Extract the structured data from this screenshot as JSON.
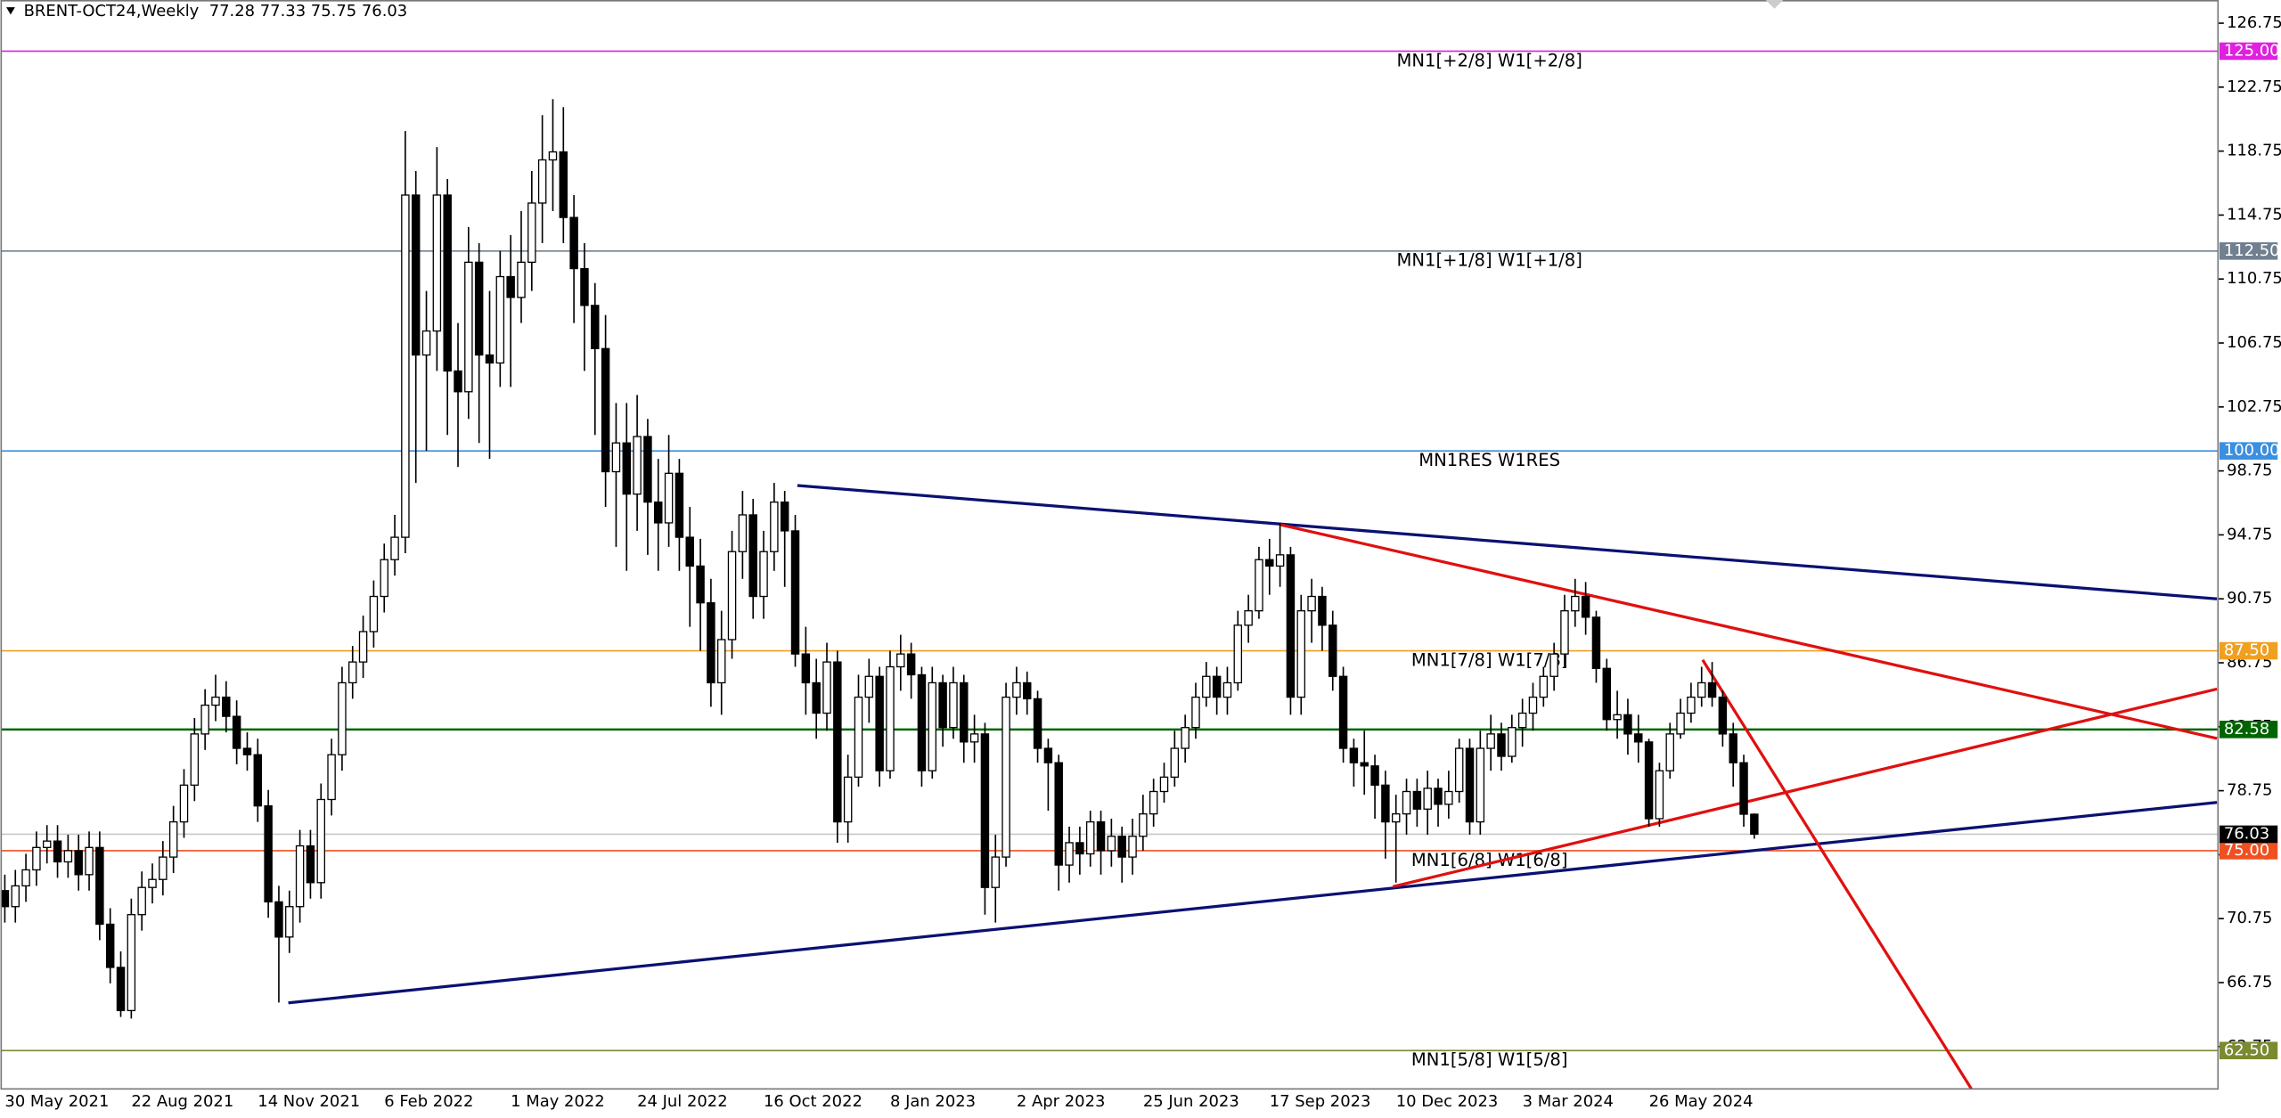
{
  "chart_data": {
    "type": "candlestick",
    "title": "BRENT-OCT24,Weekly  77.28 77.33 75.75 76.03",
    "up_color": "#ffffff",
    "down_color": "#000000",
    "wick_color": "#000000",
    "grid": false,
    "categories": [
      "30 May 2021",
      null,
      null,
      null,
      null,
      null,
      null,
      null,
      null,
      null,
      null,
      null,
      "22 Aug 2021",
      null,
      null,
      null,
      null,
      null,
      null,
      null,
      null,
      null,
      null,
      null,
      "14 Nov 2021",
      null,
      null,
      null,
      null,
      null,
      null,
      null,
      null,
      null,
      null,
      null,
      "6 Feb 2022",
      null,
      null,
      null,
      null,
      null,
      null,
      null,
      null,
      null,
      null,
      null,
      "1 May 2022",
      null,
      null,
      null,
      null,
      null,
      null,
      null,
      null,
      null,
      null,
      null,
      "24 Jul 2022",
      null,
      null,
      null,
      null,
      null,
      null,
      null,
      null,
      null,
      null,
      null,
      "16 Oct 2022",
      null,
      null,
      null,
      null,
      null,
      null,
      null,
      null,
      null,
      null,
      null,
      "8 Jan 2023",
      null,
      null,
      null,
      null,
      null,
      null,
      null,
      null,
      null,
      null,
      null,
      "2 Apr 2023",
      null,
      null,
      null,
      null,
      null,
      null,
      null,
      null,
      null,
      null,
      null,
      "25 Jun 2023",
      null,
      null,
      null,
      null,
      null,
      null,
      null,
      null,
      null,
      null,
      null,
      "17 Sep 2023",
      null,
      null,
      null,
      null,
      null,
      null,
      null,
      null,
      null,
      null,
      null,
      "10 Dec 2023",
      null,
      null,
      null,
      null,
      null,
      null,
      null,
      null,
      null,
      null,
      null,
      "3 Mar 2024",
      null,
      null,
      null,
      null,
      null,
      null,
      null,
      null,
      null,
      null,
      null,
      "26 May 2024",
      null,
      null,
      null,
      null,
      null,
      null,
      null,
      null,
      null,
      null
    ],
    "open": [
      72.5,
      71.5,
      72.8,
      73.8,
      75.2,
      75.6,
      74.3,
      75.0,
      73.5,
      75.2,
      70.4,
      67.7,
      65.0,
      71.0,
      72.7,
      73.2,
      74.6,
      76.8,
      79.1,
      82.3,
      84.1,
      84.6,
      83.4,
      81.4,
      81.0,
      77.8,
      71.8,
      69.6,
      71.5,
      75.3,
      73.0,
      78.2,
      81.0,
      85.5,
      86.8,
      88.7,
      90.9,
      93.2,
      94.6,
      116.0,
      106.0,
      107.5,
      116.0,
      105.0,
      103.7,
      111.8,
      106.0,
      105.5,
      110.9,
      109.6,
      111.8,
      115.5,
      118.2,
      118.7,
      114.6,
      111.4,
      109.1,
      106.4,
      98.7,
      100.5,
      97.3,
      100.9,
      96.8,
      95.5,
      98.6,
      94.6,
      92.8,
      90.5,
      85.5,
      88.2,
      93.7,
      96.0,
      90.9,
      93.7,
      96.8,
      95.0,
      87.3,
      85.5,
      83.6,
      86.8,
      76.8,
      79.6,
      84.6,
      85.9,
      80.0,
      86.5,
      87.3,
      86.0,
      80.0,
      85.5,
      82.7,
      85.5,
      81.8,
      82.3,
      72.7,
      74.6,
      84.6,
      85.5,
      84.5,
      81.4,
      80.5,
      74.1,
      75.5,
      74.8,
      76.8,
      75.0,
      75.9,
      74.6,
      75.9,
      77.3,
      78.7,
      79.6,
      81.4,
      82.7,
      84.6,
      85.9,
      84.6,
      85.5,
      89.1,
      90.0,
      93.2,
      92.8,
      93.5,
      84.6,
      90.0,
      90.9,
      89.1,
      85.9,
      81.4,
      80.5,
      80.3,
      79.1,
      76.8,
      77.3,
      78.7,
      77.6,
      78.9,
      77.9,
      78.7,
      81.4,
      76.8,
      81.4,
      82.3,
      80.9,
      82.7,
      83.6,
      84.6,
      85.9,
      87.3,
      90.0,
      90.9,
      89.6,
      86.4,
      83.2,
      83.5,
      82.3,
      81.8,
      77.0,
      80.0,
      82.3,
      83.6,
      84.6,
      85.5,
      84.6,
      82.3,
      80.5,
      77.28
    ],
    "high": [
      73.5,
      73.8,
      74.8,
      76.2,
      76.6,
      76.6,
      76.0,
      76.0,
      76.2,
      76.2,
      71.4,
      68.7,
      72.0,
      73.7,
      74.2,
      75.6,
      77.8,
      80.1,
      83.3,
      85.1,
      86.0,
      85.6,
      84.4,
      82.4,
      82.0,
      78.8,
      72.8,
      72.5,
      76.3,
      76.3,
      79.2,
      82.0,
      86.5,
      87.8,
      89.7,
      91.9,
      94.2,
      96.0,
      120.0,
      117.5,
      110.0,
      119.0,
      117.0,
      108.0,
      114.0,
      113.0,
      110.0,
      112.5,
      113.5,
      115.0,
      117.5,
      121.0,
      122.0,
      121.5,
      116.0,
      113.0,
      110.5,
      108.5,
      103.0,
      103.0,
      103.5,
      102.0,
      99.5,
      101.0,
      99.5,
      96.5,
      94.5,
      92.0,
      90.0,
      95.0,
      97.5,
      97.0,
      95.0,
      98.0,
      97.5,
      96.0,
      89.0,
      87.0,
      88.0,
      87.5,
      81.0,
      86.0,
      87.0,
      86.5,
      87.5,
      88.5,
      88.0,
      86.5,
      86.5,
      86.0,
      86.5,
      86.0,
      83.5,
      83.0,
      76.0,
      85.5,
      86.5,
      86.2,
      85.0,
      82.0,
      81.0,
      76.5,
      76.5,
      77.5,
      77.5,
      77.0,
      76.5,
      77.0,
      78.5,
      79.5,
      80.5,
      82.5,
      83.5,
      85.5,
      86.8,
      86.5,
      86.5,
      90.0,
      91.0,
      94.0,
      94.5,
      95.5,
      94.0,
      91.0,
      92.0,
      91.5,
      90.0,
      86.5,
      82.0,
      82.5,
      81.0,
      80.0,
      78.5,
      79.5,
      79.5,
      80.0,
      79.5,
      80.0,
      82.0,
      82.0,
      82.5,
      83.5,
      83.0,
      83.5,
      84.5,
      85.5,
      86.5,
      88.0,
      91.0,
      92.0,
      91.8,
      90.0,
      87.0,
      85.0,
      84.5,
      83.5,
      82.0,
      80.5,
      83.0,
      84.5,
      85.5,
      86.5,
      86.8,
      85.0,
      83.0,
      81.0,
      77.33
    ],
    "low": [
      70.5,
      70.5,
      71.8,
      72.8,
      74.2,
      73.3,
      73.3,
      72.5,
      72.5,
      69.4,
      66.7,
      64.6,
      64.5,
      70.0,
      71.7,
      72.2,
      73.6,
      75.8,
      78.1,
      81.3,
      83.1,
      82.4,
      80.4,
      80.0,
      76.8,
      70.8,
      65.5,
      68.6,
      70.5,
      72.0,
      72.0,
      77.2,
      80.0,
      84.5,
      85.8,
      87.7,
      89.9,
      92.2,
      93.6,
      98.0,
      100.0,
      105.0,
      101.0,
      99.0,
      102.0,
      100.5,
      99.5,
      104.0,
      104.0,
      108.0,
      110.0,
      113.0,
      115.0,
      113.0,
      108.0,
      105.0,
      101.0,
      96.5,
      94.0,
      92.5,
      95.0,
      93.5,
      92.5,
      94.0,
      92.5,
      89.0,
      87.5,
      84.0,
      83.5,
      87.0,
      92.0,
      89.5,
      89.5,
      92.5,
      91.5,
      86.5,
      83.5,
      82.0,
      82.5,
      75.5,
      75.5,
      79.0,
      83.0,
      79.0,
      79.5,
      85.0,
      84.5,
      79.0,
      79.5,
      81.5,
      82.0,
      80.5,
      80.5,
      71.0,
      70.5,
      74.0,
      83.5,
      83.5,
      80.5,
      77.5,
      72.5,
      73.0,
      73.5,
      74.0,
      73.5,
      74.0,
      73.0,
      73.5,
      75.0,
      76.5,
      78.0,
      79.0,
      80.5,
      82.0,
      84.0,
      83.5,
      83.5,
      85.0,
      88.0,
      89.5,
      91.0,
      91.5,
      83.5,
      83.5,
      88.0,
      87.5,
      85.0,
      80.5,
      79.0,
      78.5,
      77.0,
      74.5,
      73.0,
      76.0,
      76.5,
      76.0,
      76.5,
      77.0,
      78.0,
      76.0,
      76.0,
      80.0,
      80.0,
      80.5,
      81.5,
      82.5,
      84.0,
      85.0,
      86.5,
      89.0,
      88.5,
      85.5,
      82.5,
      82.0,
      81.0,
      80.5,
      76.5,
      76.5,
      79.5,
      82.0,
      83.0,
      84.0,
      84.0,
      81.5,
      79.0,
      76.5,
      75.75
    ],
    "close": [
      71.5,
      72.8,
      73.8,
      75.2,
      75.6,
      74.3,
      75.0,
      73.5,
      75.2,
      70.4,
      67.7,
      65.0,
      71.0,
      72.7,
      73.2,
      74.6,
      76.8,
      79.1,
      82.3,
      84.1,
      84.6,
      83.4,
      81.4,
      81.0,
      77.8,
      71.8,
      69.6,
      71.5,
      75.3,
      73.0,
      78.2,
      81.0,
      85.5,
      86.8,
      88.7,
      90.9,
      93.2,
      94.6,
      116.0,
      106.0,
      107.5,
      116.0,
      105.0,
      103.7,
      111.8,
      106.0,
      105.5,
      110.9,
      109.6,
      111.8,
      115.5,
      118.2,
      118.7,
      114.6,
      111.4,
      109.1,
      106.4,
      98.7,
      100.5,
      97.3,
      100.9,
      96.8,
      95.5,
      98.6,
      94.6,
      92.8,
      90.5,
      85.5,
      88.2,
      93.7,
      96.0,
      90.9,
      93.7,
      96.8,
      95.0,
      87.3,
      85.5,
      83.6,
      86.8,
      76.8,
      79.6,
      84.6,
      85.9,
      80.0,
      86.5,
      87.3,
      86.0,
      80.0,
      85.5,
      82.7,
      85.5,
      81.8,
      82.3,
      72.7,
      74.6,
      84.6,
      85.5,
      84.5,
      81.4,
      80.5,
      74.1,
      75.5,
      74.8,
      76.8,
      75.0,
      75.9,
      74.6,
      75.9,
      77.3,
      78.7,
      79.6,
      81.4,
      82.7,
      84.6,
      85.9,
      84.6,
      85.5,
      89.1,
      90.0,
      93.2,
      92.8,
      93.5,
      84.6,
      90.0,
      90.9,
      89.1,
      85.9,
      81.4,
      80.5,
      80.3,
      79.1,
      76.8,
      77.3,
      78.7,
      77.6,
      78.9,
      77.9,
      78.7,
      81.4,
      76.8,
      81.4,
      82.3,
      80.9,
      82.7,
      83.6,
      84.6,
      85.9,
      87.3,
      90.0,
      90.9,
      89.6,
      86.4,
      83.2,
      83.5,
      82.3,
      81.8,
      77.0,
      80.0,
      82.3,
      83.6,
      84.6,
      85.5,
      84.6,
      82.3,
      80.5,
      77.28,
      76.03
    ],
    "ylim": [
      60.1,
      128.2
    ],
    "yticks": [
      62.75,
      66.75,
      70.75,
      74.75,
      78.75,
      82.75,
      86.75,
      90.75,
      94.75,
      98.75,
      102.75,
      106.75,
      110.75,
      114.75,
      118.75,
      122.75,
      126.75
    ],
    "levels": [
      {
        "value": 125,
        "label": "125.00",
        "text": "MN1[+2/8] W1[+2/8]",
        "color": "#e020e0"
      },
      {
        "value": 112.5,
        "label": "112.50",
        "text": "MN1[+1/8] W1[+1/8]",
        "color": "#708090"
      },
      {
        "value": 100,
        "label": "100.00",
        "text": "MN1RES W1RES",
        "color": "#3a8fe0"
      },
      {
        "value": 87.5,
        "label": "87.50",
        "text": "MN1[7/8] W1[7/8]",
        "color": "#f0a020"
      },
      {
        "value": 82.58,
        "label": "82.58",
        "color": "#006400"
      },
      {
        "value": 75,
        "label": "75.00",
        "text": "MN1[6/8] W1[6/8]",
        "color": "#f05020"
      },
      {
        "value": 62.5,
        "label": "62.50",
        "text": "MN1[5/8] W1[5/8]",
        "color": "#7a8a30"
      }
    ],
    "last_price": {
      "value": 76.03,
      "label": "76.03",
      "color": "#000000"
    },
    "trendlines": [
      {
        "color": "#0a1172",
        "x": [
          75.2,
          209.9
        ],
        "y": [
          97.84,
          90.75
        ]
      },
      {
        "color": "#0a1172",
        "x": [
          26.9,
          209.9
        ],
        "y": [
          65.48,
          78.02
        ]
      },
      {
        "color": "#e01010",
        "x": [
          121,
          209.9
        ],
        "y": [
          95.39,
          82.02
        ]
      },
      {
        "color": "#e01010",
        "x": [
          131.7,
          209.9
        ],
        "y": [
          72.75,
          85.11
        ]
      },
      {
        "color": "#e01010",
        "x": [
          161.1,
          186.6
        ],
        "y": [
          86.93,
          60.1
        ]
      }
    ]
  }
}
